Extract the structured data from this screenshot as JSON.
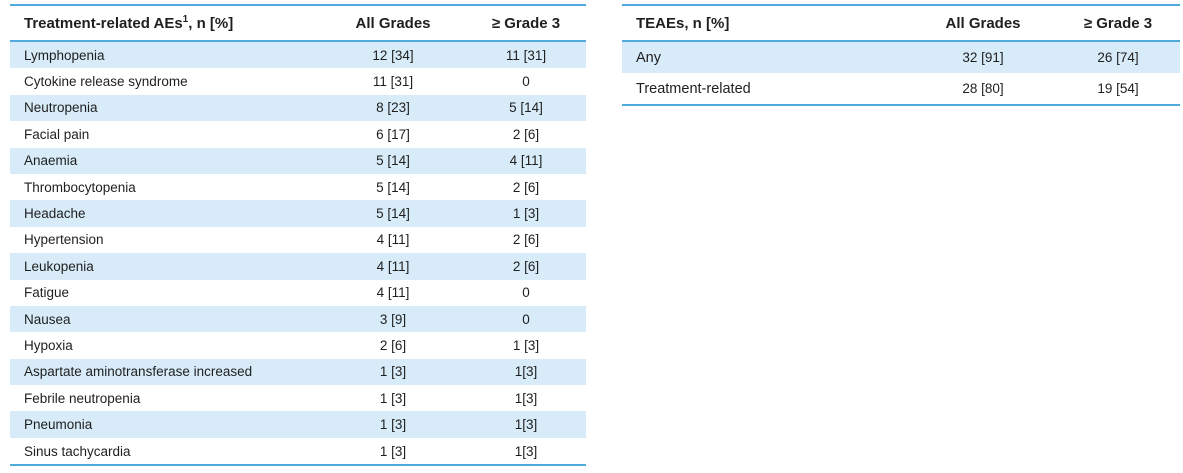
{
  "colors": {
    "stripe": "#d7ebf8",
    "border": "#4fabdc",
    "text": "#1f1f1f",
    "bg": "#ffffff"
  },
  "left_table": {
    "header": {
      "title_pre": "Treatment-related AEs",
      "title_sup": "1",
      "title_post": ", n [%]",
      "col_all_grades": "All Grades",
      "col_grade3": "≥ Grade 3"
    },
    "rows": [
      {
        "name": "Lymphopenia",
        "all": "12 [34]",
        "g3": "11 [31]"
      },
      {
        "name": "Cytokine release syndrome",
        "all": "11 [31]",
        "g3": "0"
      },
      {
        "name": "Neutropenia",
        "all": "8 [23]",
        "g3": "5 [14]"
      },
      {
        "name": "Facial pain",
        "all": "6 [17]",
        "g3": "2 [6]"
      },
      {
        "name": "Anaemia",
        "all": "5 [14]",
        "g3": "4 [11]"
      },
      {
        "name": "Thrombocytopenia",
        "all": "5 [14]",
        "g3": "2 [6]"
      },
      {
        "name": "Headache",
        "all": "5 [14]",
        "g3": "1 [3]"
      },
      {
        "name": "Hypertension",
        "all": "4 [11]",
        "g3": "2 [6]"
      },
      {
        "name": "Leukopenia",
        "all": "4 [11]",
        "g3": "2 [6]"
      },
      {
        "name": "Fatigue",
        "all": "4 [11]",
        "g3": "0"
      },
      {
        "name": "Nausea",
        "all": "3 [9]",
        "g3": "0"
      },
      {
        "name": "Hypoxia",
        "all": "2 [6]",
        "g3": "1 [3]"
      },
      {
        "name": "Aspartate aminotransferase increased",
        "all": "1 [3]",
        "g3": "1[3]"
      },
      {
        "name": "Febrile neutropenia",
        "all": "1 [3]",
        "g3": "1[3]"
      },
      {
        "name": "Pneumonia",
        "all": "1 [3]",
        "g3": "1[3]"
      },
      {
        "name": "Sinus tachycardia",
        "all": "1 [3]",
        "g3": "1[3]"
      }
    ]
  },
  "right_table": {
    "header": {
      "title": "TEAEs, n [%]",
      "col_all_grades": "All Grades",
      "col_grade3": "≥ Grade 3"
    },
    "rows": [
      {
        "name": "Any",
        "all": "32 [91]",
        "g3": "26 [74]"
      },
      {
        "name": "Treatment-related",
        "all": "28 [80]",
        "g3": "19 [54]"
      }
    ]
  }
}
